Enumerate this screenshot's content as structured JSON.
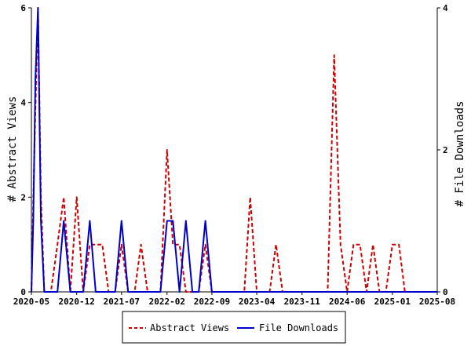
{
  "chart_data": {
    "type": "line",
    "x_axis": {
      "tick_labels": [
        "2020-05",
        "2020-12",
        "2021-07",
        "2022-02",
        "2022-09",
        "2023-04",
        "2023-11",
        "2024-06",
        "2025-01",
        "2025-08"
      ],
      "range": [
        "2020-05",
        "2025-08"
      ]
    },
    "y_left": {
      "label": "# Abstract Views",
      "ticks": [
        0,
        2,
        4,
        6
      ],
      "ylim": [
        0,
        6
      ]
    },
    "y_right": {
      "label": "# File Downloads",
      "ticks": [
        0,
        2,
        4
      ],
      "ylim": [
        0,
        4
      ]
    },
    "series": [
      {
        "name": "Abstract Views",
        "axis": "left",
        "color": "#cc0000",
        "dash": true,
        "points": [
          [
            "2020-05",
            0
          ],
          [
            "2020-05-15",
            3
          ],
          [
            "2020-06",
            6
          ],
          [
            "2020-06-15",
            2
          ],
          [
            "2020-07",
            0
          ],
          [
            "2020-08",
            0
          ],
          [
            "2020-09",
            1
          ],
          [
            "2020-10",
            2
          ],
          [
            "2020-11",
            0
          ],
          [
            "2020-12",
            2
          ],
          [
            "2021-01",
            0
          ],
          [
            "2021-02",
            1
          ],
          [
            "2021-03",
            1
          ],
          [
            "2021-04",
            1
          ],
          [
            "2021-05",
            0
          ],
          [
            "2021-06",
            0
          ],
          [
            "2021-07",
            1
          ],
          [
            "2021-08",
            0
          ],
          [
            "2021-09",
            0
          ],
          [
            "2021-10",
            1
          ],
          [
            "2021-11",
            0
          ],
          [
            "2021-12",
            0
          ],
          [
            "2022-01",
            0
          ],
          [
            "2022-02",
            3
          ],
          [
            "2022-03",
            1
          ],
          [
            "2022-04",
            1
          ],
          [
            "2022-05",
            0
          ],
          [
            "2022-06",
            0
          ],
          [
            "2022-07",
            0
          ],
          [
            "2022-08",
            1
          ],
          [
            "2022-09",
            0
          ],
          [
            "2022-10",
            0
          ],
          [
            "2022-11",
            0
          ],
          [
            "2022-12",
            0
          ],
          [
            "2023-01",
            0
          ],
          [
            "2023-02",
            0
          ],
          [
            "2023-03",
            2
          ],
          [
            "2023-04",
            0
          ],
          [
            "2023-05",
            0
          ],
          [
            "2023-06",
            0
          ],
          [
            "2023-07",
            1
          ],
          [
            "2023-08",
            0
          ],
          [
            "2023-09",
            0
          ],
          [
            "2023-10",
            0
          ],
          [
            "2023-11",
            0
          ],
          [
            "2023-12",
            0
          ],
          [
            "2024-01",
            0
          ],
          [
            "2024-02",
            0
          ],
          [
            "2024-03",
            0
          ],
          [
            "2024-04",
            5
          ],
          [
            "2024-05",
            1
          ],
          [
            "2024-06",
            0
          ],
          [
            "2024-07",
            1
          ],
          [
            "2024-08",
            1
          ],
          [
            "2024-09",
            0
          ],
          [
            "2024-10",
            1
          ],
          [
            "2024-11",
            0
          ],
          [
            "2024-12",
            0
          ],
          [
            "2025-01",
            1
          ],
          [
            "2025-02",
            1
          ],
          [
            "2025-03",
            0
          ],
          [
            "2025-04",
            0
          ],
          [
            "2025-05",
            0
          ],
          [
            "2025-06",
            0
          ],
          [
            "2025-07",
            0
          ],
          [
            "2025-08",
            0
          ]
        ]
      },
      {
        "name": "File Downloads",
        "axis": "right",
        "color": "#0000cc",
        "dash": false,
        "points": [
          [
            "2020-05",
            0
          ],
          [
            "2020-05-10",
            1
          ],
          [
            "2020-05-20",
            3
          ],
          [
            "2020-06",
            4
          ],
          [
            "2020-06-15",
            1
          ],
          [
            "2020-07",
            0
          ],
          [
            "2020-08",
            0
          ],
          [
            "2020-09",
            0
          ],
          [
            "2020-10",
            1
          ],
          [
            "2020-11",
            0
          ],
          [
            "2020-12",
            0
          ],
          [
            "2021-01",
            0
          ],
          [
            "2021-02",
            1
          ],
          [
            "2021-03",
            0
          ],
          [
            "2021-04",
            0
          ],
          [
            "2021-05",
            0
          ],
          [
            "2021-06",
            0
          ],
          [
            "2021-07",
            1
          ],
          [
            "2021-08",
            0
          ],
          [
            "2021-09",
            0
          ],
          [
            "2021-10",
            0
          ],
          [
            "2021-11",
            0
          ],
          [
            "2021-12",
            0
          ],
          [
            "2022-01",
            0
          ],
          [
            "2022-02",
            1
          ],
          [
            "2022-03",
            1
          ],
          [
            "2022-04",
            0
          ],
          [
            "2022-05",
            1
          ],
          [
            "2022-06",
            0
          ],
          [
            "2022-07",
            0
          ],
          [
            "2022-08",
            1
          ],
          [
            "2022-09",
            0
          ],
          [
            "2022-10",
            0
          ],
          [
            "2022-11",
            0
          ],
          [
            "2022-12",
            0
          ],
          [
            "2023-06",
            0
          ],
          [
            "2024-01",
            0
          ],
          [
            "2024-06",
            0
          ],
          [
            "2025-01",
            0
          ],
          [
            "2025-08",
            0
          ]
        ]
      }
    ],
    "legend": {
      "position": "bottom",
      "entries": [
        "Abstract Views",
        "File Downloads"
      ]
    },
    "grid": false
  }
}
